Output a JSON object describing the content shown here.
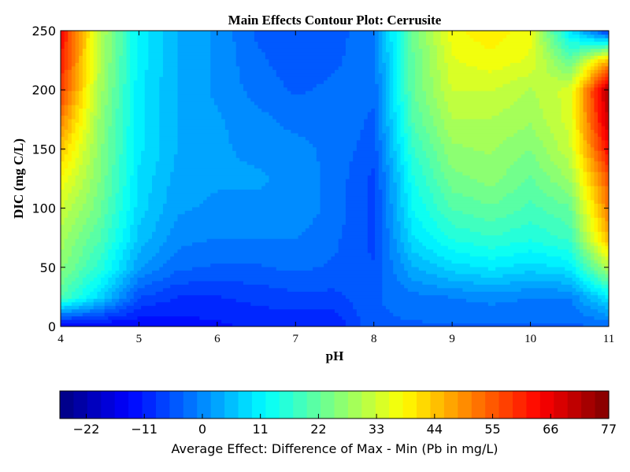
{
  "chart_data": {
    "type": "heatmap",
    "subtype": "filled-contour",
    "title": "Main Effects Contour Plot: Cerrusite",
    "xlabel": "pH",
    "ylabel": "DIC (mg C/L)",
    "xlim": [
      4,
      11
    ],
    "ylim": [
      0,
      250
    ],
    "x_ticks": [
      "4",
      "5",
      "6",
      "7",
      "8",
      "9",
      "10",
      "11"
    ],
    "y_ticks": [
      "0",
      "50",
      "100",
      "150",
      "200",
      "250"
    ],
    "colormap": "jet",
    "colorbar": {
      "label": "Average Effect: Difference of Max - Min (Pb in mg/L)",
      "range": [
        -27,
        77
      ],
      "ticks": [
        "−22",
        "−11",
        "0",
        "11",
        "22",
        "33",
        "44",
        "55",
        "66",
        "77"
      ],
      "orientation": "horizontal",
      "placement": "bottom"
    },
    "x": [
      4,
      4.5,
      5,
      5.5,
      6,
      6.5,
      7,
      7.5,
      8,
      8.5,
      9,
      9.5,
      10,
      10.5,
      11
    ],
    "y": [
      0,
      25,
      50,
      75,
      100,
      125,
      150,
      175,
      200,
      225,
      250
    ],
    "z": [
      [
        -16,
        -15,
        -14,
        -13,
        -12,
        -11,
        -11,
        -11,
        -4,
        -4,
        -4,
        -4,
        -4,
        -4,
        -4
      ],
      [
        20,
        8,
        -6,
        -9,
        -9,
        -8,
        -7,
        -7,
        -4,
        -2,
        -1,
        0,
        -1,
        -1,
        10
      ],
      [
        26,
        16,
        2,
        -3,
        -4,
        -4,
        -3,
        -4,
        -6,
        4,
        8,
        10,
        8,
        10,
        30
      ],
      [
        29,
        20,
        6,
        0,
        -1,
        -1,
        -1,
        -3,
        -7,
        9,
        15,
        17,
        15,
        18,
        46
      ],
      [
        33,
        23,
        8,
        2,
        1,
        1,
        1,
        -2,
        -7,
        12,
        20,
        22,
        19,
        22,
        52
      ],
      [
        38,
        25,
        9,
        3,
        2,
        2,
        1,
        -2,
        -7,
        14,
        24,
        26,
        22,
        28,
        56
      ],
      [
        44,
        26,
        10,
        4,
        2,
        1,
        0,
        -2,
        -5,
        17,
        27,
        28,
        25,
        32,
        64
      ],
      [
        51,
        27,
        10,
        4,
        2,
        0,
        -2,
        -2,
        -4,
        20,
        30,
        30,
        28,
        34,
        70
      ],
      [
        58,
        29,
        10,
        4,
        1,
        -2,
        -4,
        -3,
        -3,
        22,
        33,
        33,
        30,
        34,
        73
      ],
      [
        62,
        30,
        11,
        4,
        1,
        -3,
        -5,
        -4,
        -2,
        22,
        35,
        37,
        35,
        22,
        46
      ],
      [
        64,
        31,
        11,
        4,
        1,
        -4,
        -6,
        -5,
        -1,
        23,
        37,
        40,
        36,
        10,
        -10
      ]
    ]
  },
  "colors": {
    "jet": [
      "#00007f",
      "#0000ff",
      "#007fff",
      "#00ffff",
      "#7fff7f",
      "#ffff00",
      "#ff7f00",
      "#ff0000",
      "#7f0000"
    ]
  }
}
